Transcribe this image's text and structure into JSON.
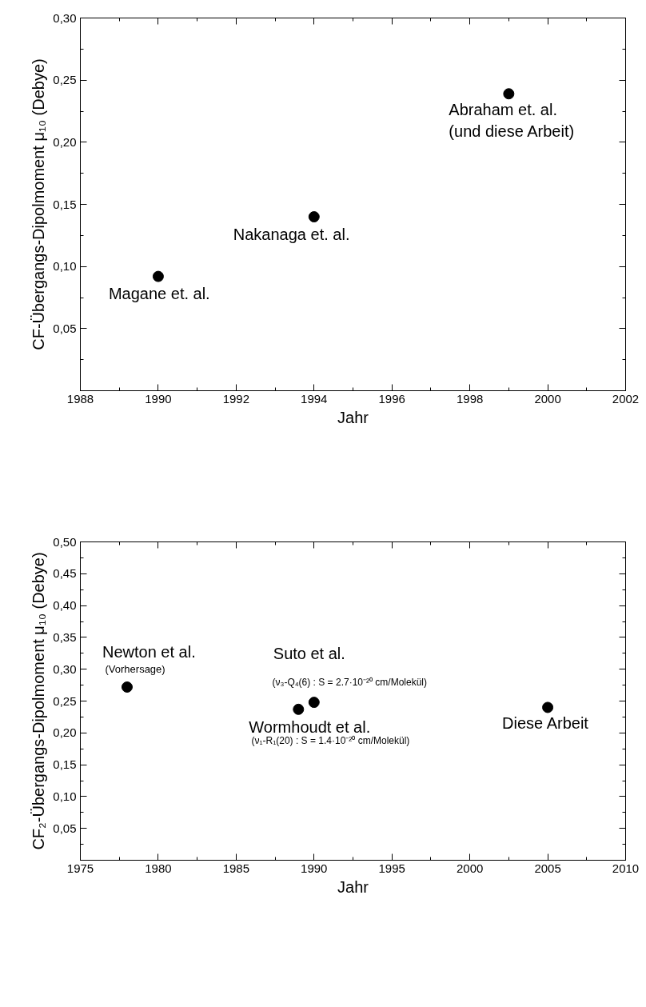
{
  "chart_data": [
    {
      "type": "scatter",
      "marker": "circle",
      "grid": false,
      "xlabel": "Jahr",
      "ylabel": "CF-Übergangs-Dipolmoment μ₁₀ (Debye)",
      "x": [
        1990,
        1994,
        1999
      ],
      "values": [
        0.092,
        0.14,
        0.239
      ],
      "color": "#000000",
      "xlim": [
        1988,
        2002
      ],
      "xticks": [
        1988,
        1990,
        1992,
        1994,
        1996,
        1998,
        2000,
        2002
      ],
      "ylim": [
        0,
        0.3
      ],
      "yticks": [
        {
          "value": 0.05,
          "label": "0,05"
        },
        {
          "value": 0.1,
          "label": "0,10"
        },
        {
          "value": 0.15,
          "label": "0,15"
        },
        {
          "value": 0.2,
          "label": "0,20"
        },
        {
          "value": 0.25,
          "label": "0,25"
        },
        {
          "value": 0.3,
          "label": "0,30"
        }
      ],
      "annotations": [
        {
          "text": "Magane et. al.",
          "x": 1990,
          "y": 0.092
        },
        {
          "text": "Nakanaga et. al.",
          "x": 1994,
          "y": 0.14
        },
        {
          "text": "Abraham et. al.\n(und diese Arbeit)",
          "x": 1999,
          "y": 0.239
        }
      ]
    },
    {
      "type": "scatter",
      "marker": "circle",
      "grid": false,
      "xlabel": "Jahr",
      "ylabel": "CF₂-Übergangs-Dipolmoment μ₁₀ (Debye)",
      "x": [
        1978,
        1989,
        1990,
        2005
      ],
      "values": [
        0.272,
        0.237,
        0.248,
        0.24
      ],
      "color": "#000000",
      "xlim": [
        1975,
        2010
      ],
      "xticks": [
        1975,
        1980,
        1985,
        1990,
        1995,
        2000,
        2005,
        2010
      ],
      "ylim": [
        0,
        0.5
      ],
      "yticks": [
        {
          "value": 0.05,
          "label": "0,05"
        },
        {
          "value": 0.1,
          "label": "0,10"
        },
        {
          "value": 0.15,
          "label": "0,15"
        },
        {
          "value": 0.2,
          "label": "0,20"
        },
        {
          "value": 0.25,
          "label": "0,25"
        },
        {
          "value": 0.3,
          "label": "0,30"
        },
        {
          "value": 0.35,
          "label": "0,35"
        },
        {
          "value": 0.4,
          "label": "0,40"
        },
        {
          "value": 0.45,
          "label": "0,45"
        },
        {
          "value": 0.5,
          "label": "0,50"
        }
      ],
      "annotations": [
        {
          "text": "Newton et al.",
          "x": 1978,
          "y": 0.272
        },
        "(Vorhersage)",
        {
          "text": "Suto et al.",
          "x": 1990,
          "y": 0.248
        },
        "(ν₃-Q₄(6) : S = 2.7·10⁻²⁰ cm/Molekül)",
        {
          "text": "Wormhoudt et al.",
          "x": 1989,
          "y": 0.237
        },
        "(ν₁-R₁(20) : S = 1.4·10⁻²⁰ cm/Molekül)",
        {
          "text": "Diese Arbeit",
          "x": 2005,
          "y": 0.24
        }
      ]
    }
  ]
}
